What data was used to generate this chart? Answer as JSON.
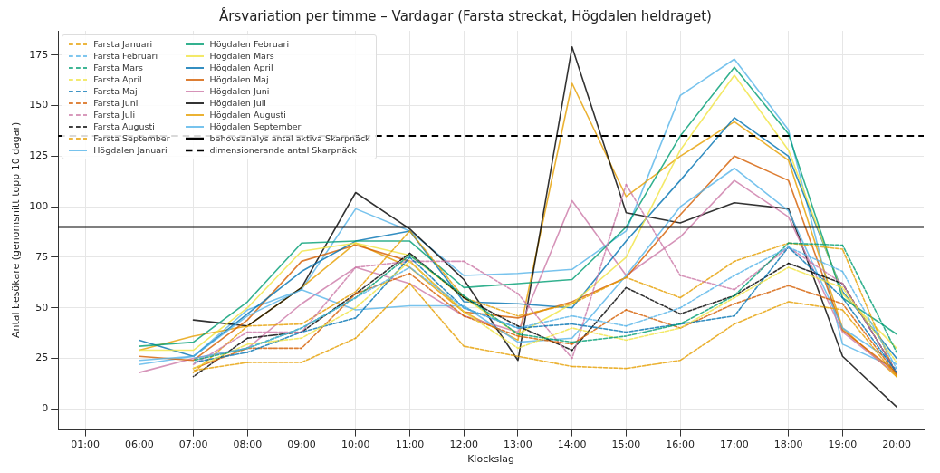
{
  "chart_data": {
    "type": "line",
    "title": "Årsvariation per timme – Vardagar (Farsta streckat, Högdalen heldraget)",
    "xlabel": "Klockslag",
    "ylabel": "Antal besökare (genomsnitt topp 10 dagar)",
    "categories": [
      "01:00",
      "06:00",
      "07:00",
      "08:00",
      "09:00",
      "10:00",
      "11:00",
      "12:00",
      "13:00",
      "14:00",
      "15:00",
      "16:00",
      "17:00",
      "18:00",
      "19:00",
      "20:00"
    ],
    "ylim": [
      -10,
      187
    ],
    "yticks": [
      0,
      25,
      50,
      75,
      100,
      125,
      150,
      175
    ],
    "grid": true,
    "legend": "top left",
    "marker": "none",
    "series": [
      {
        "name": "Farsta Januari",
        "color": "#e69f00",
        "line_style": "dashed",
        "values": [
          null,
          null,
          19,
          23,
          23,
          35,
          62,
          31,
          26,
          21,
          20,
          24,
          42,
          53,
          49,
          16
        ]
      },
      {
        "name": "Farsta Februari",
        "color": "#56b4e9",
        "line_style": "dashed",
        "values": [
          null,
          null,
          25,
          30,
          40,
          55,
          70,
          50,
          40,
          46,
          41,
          50,
          66,
          80,
          68,
          20
        ]
      },
      {
        "name": "Farsta Mars",
        "color": "#009e73",
        "line_style": "dashed",
        "values": [
          null,
          null,
          24,
          30,
          40,
          55,
          76,
          56,
          37,
          33,
          36,
          42,
          56,
          82,
          81,
          28
        ]
      },
      {
        "name": "Farsta April",
        "color": "#f0e442",
        "line_style": "dashed",
        "values": [
          null,
          null,
          20,
          32,
          35,
          50,
          73,
          48,
          30,
          40,
          34,
          40,
          55,
          70,
          60,
          23
        ]
      },
      {
        "name": "Farsta Maj",
        "color": "#0072b2",
        "line_style": "dashed",
        "values": [
          null,
          null,
          23,
          28,
          38,
          45,
          75,
          50,
          40,
          42,
          38,
          42,
          46,
          80,
          55,
          18
        ]
      },
      {
        "name": "Farsta Juni",
        "color": "#d55e00",
        "line_style": "dashed",
        "values": [
          null,
          null,
          20,
          30,
          30,
          57,
          67,
          46,
          36,
          32,
          49,
          40,
          52,
          61,
          52,
          17
        ]
      },
      {
        "name": "Farsta Juli",
        "color": "#cc79a7",
        "line_style": "dashed",
        "values": [
          null,
          null,
          22,
          38,
          38,
          70,
          73,
          73,
          57,
          25,
          111,
          66,
          59,
          80,
          62,
          18
        ]
      },
      {
        "name": "Farsta Augusti",
        "color": "#000000",
        "line_style": "dashed",
        "values": [
          null,
          null,
          16,
          35,
          38,
          57,
          77,
          55,
          41,
          29,
          60,
          47,
          56,
          72,
          62,
          18
        ]
      },
      {
        "name": "Farsta September",
        "color": "#e69f00",
        "line_style": "dashed",
        "values": [
          null,
          null,
          18,
          41,
          42,
          58,
          88,
          55,
          46,
          52,
          65,
          55,
          73,
          82,
          79,
          16
        ]
      },
      {
        "name": "Högdalen Januari",
        "color": "#56b4e9",
        "line_style": "solid",
        "values": [
          null,
          24,
          26,
          46,
          59,
          49,
          51,
          51,
          33,
          35,
          66,
          100,
          119,
          98,
          40,
          22
        ]
      },
      {
        "name": "Högdalen Februari",
        "color": "#009e73",
        "line_style": "solid",
        "values": [
          null,
          31,
          33,
          53,
          82,
          83,
          83,
          60,
          62,
          64,
          90,
          135,
          169,
          136,
          55,
          37
        ]
      },
      {
        "name": "Högdalen Mars",
        "color": "#f0e442",
        "line_style": "solid",
        "values": [
          null,
          29,
          29,
          50,
          78,
          82,
          76,
          55,
          37,
          52,
          75,
          128,
          165,
          128,
          57,
          30
        ]
      },
      {
        "name": "Högdalen April",
        "color": "#0072b2",
        "line_style": "solid",
        "values": [
          null,
          34,
          26,
          47,
          68,
          83,
          88,
          53,
          52,
          50,
          83,
          113,
          144,
          125,
          58,
          25
        ]
      },
      {
        "name": "Högdalen Maj",
        "color": "#d55e00",
        "line_style": "solid",
        "values": [
          null,
          26,
          24,
          44,
          73,
          81,
          73,
          48,
          45,
          53,
          65,
          96,
          125,
          113,
          39,
          18
        ]
      },
      {
        "name": "Högdalen Juni",
        "color": "#cc79a7",
        "line_style": "solid",
        "values": [
          null,
          18,
          25,
          30,
          52,
          70,
          62,
          46,
          38,
          103,
          66,
          85,
          113,
          95,
          38,
          17
        ]
      },
      {
        "name": "Högdalen Juli",
        "color": "#000000",
        "line_style": "solid",
        "values": [
          null,
          null,
          44,
          41,
          60,
          107,
          89,
          64,
          24,
          179,
          97,
          92,
          102,
          99,
          26,
          1
        ]
      },
      {
        "name": "Högdalen Augusti",
        "color": "#e69f00",
        "line_style": "solid",
        "values": [
          null,
          29,
          36,
          41,
          60,
          82,
          70,
          48,
          34,
          161,
          105,
          125,
          142,
          123,
          40,
          16
        ]
      },
      {
        "name": "Högdalen September",
        "color": "#56b4e9",
        "line_style": "solid",
        "values": [
          null,
          22,
          26,
          49,
          59,
          99,
          88,
          66,
          67,
          69,
          88,
          155,
          173,
          138,
          32,
          20
        ]
      }
    ],
    "ref_lines": [
      {
        "axis": "y",
        "value": 90,
        "label": "behovsanalys antal aktiva Skarpnäck",
        "color": "#000000",
        "line_style": "solid"
      },
      {
        "axis": "y",
        "value": 135,
        "label": "dimensionerande antal Skarpnäck",
        "color": "#000000",
        "line_style": "dashed"
      }
    ]
  }
}
